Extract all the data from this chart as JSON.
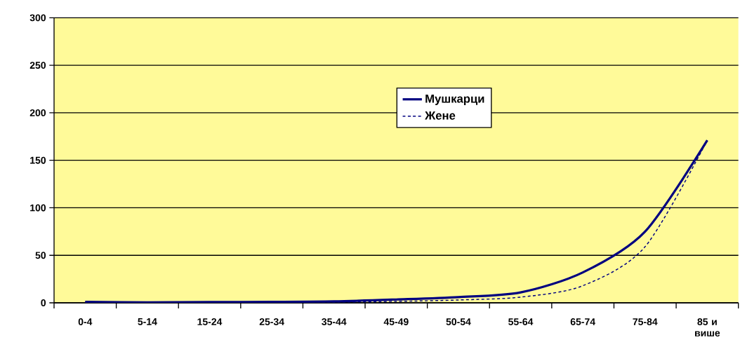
{
  "chart_data": {
    "type": "line",
    "categories": [
      "0-4",
      "5-14",
      "15-24",
      "25-34",
      "35-44",
      "45-49",
      "50-54",
      "55-64",
      "65-74",
      "75-84",
      "85 и више"
    ],
    "series": [
      {
        "name": "Мушкарци",
        "color": "#000080",
        "line_style": "solid",
        "values": [
          1,
          0.5,
          0.8,
          1,
          1.5,
          3.5,
          6,
          11,
          32,
          75,
          171
        ]
      },
      {
        "name": "Жене",
        "color": "#000080",
        "line_style": "dashed",
        "values": [
          0.5,
          0.3,
          0.5,
          0.6,
          0.8,
          1.5,
          3,
          6,
          18,
          59,
          171
        ]
      }
    ],
    "ylim": [
      0,
      300
    ],
    "yticks": [
      0,
      50,
      100,
      150,
      200,
      250,
      300
    ],
    "grid": "y",
    "legend": "top"
  }
}
